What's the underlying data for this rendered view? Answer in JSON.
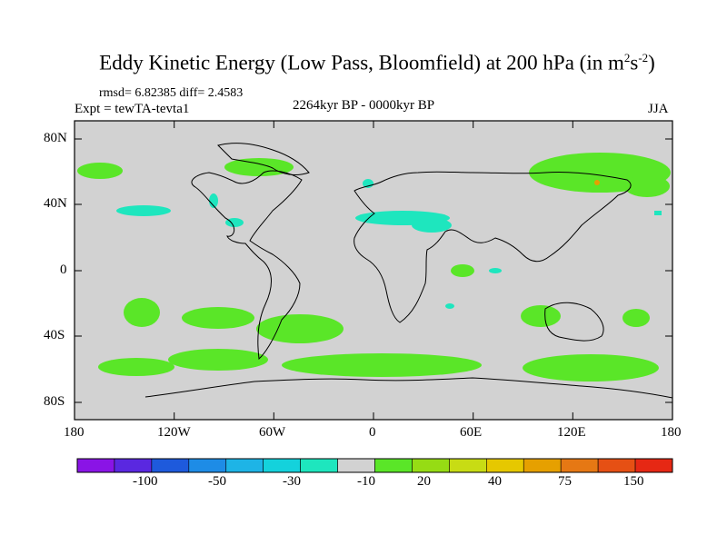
{
  "title": {
    "main": "Eddy Kinetic Energy (Low Pass, Bloomfield) at 200 hPa (in m",
    "sup1": "2",
    "mid": "s",
    "sup2": "-2",
    "end": ")"
  },
  "stats": "rmsd= 6.82385 diff= 2.4583",
  "experiment": "Expt = tewTA-tevta1",
  "period": "2264kyr BP - 0000kyr BP",
  "season": "JJA",
  "axes": {
    "lat_labels": [
      "80N",
      "40N",
      "0",
      "40S",
      "80S"
    ],
    "lon_labels": [
      "180",
      "120W",
      "60W",
      "0",
      "60E",
      "120E",
      "180"
    ]
  },
  "colorbar": {
    "colors": [
      "#8a14e6",
      "#5a28e0",
      "#1e5adc",
      "#1e8ce6",
      "#1eb4e6",
      "#14d2dc",
      "#1ee6be",
      "#d2d2d2",
      "#5ae628",
      "#96dc14",
      "#c8dc14",
      "#e6c800",
      "#e6a000",
      "#e67814",
      "#e65014",
      "#e62814"
    ],
    "labels": [
      "-100",
      "-50",
      "-30",
      "-10",
      "20",
      "40",
      "75",
      "150"
    ]
  },
  "palette": {
    "ocean_fill": "#d2d2d2",
    "positive": "#5ae628",
    "negative": "#1ee6be",
    "peak": "#e6a000"
  }
}
